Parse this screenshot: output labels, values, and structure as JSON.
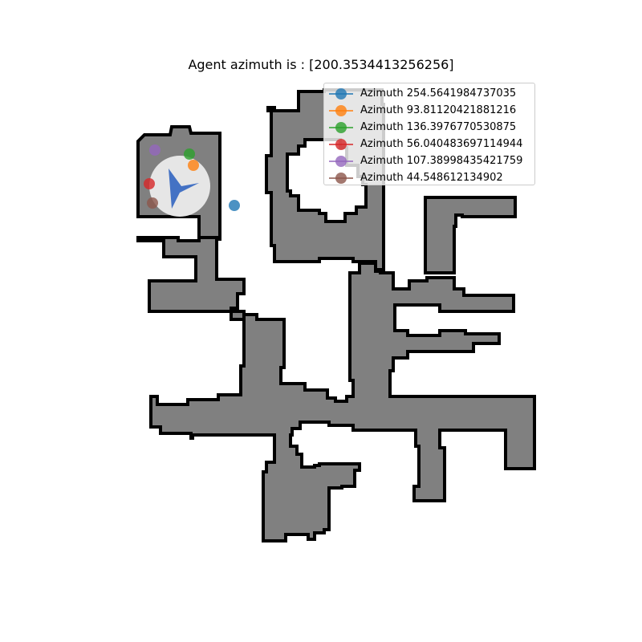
{
  "title": "Agent azimuth is : [200.3534413256256]",
  "colors": {
    "floor": "#808080",
    "wall": "#000000",
    "agent_view": "#e6e6e6",
    "agent_arrow": "#4472c4"
  },
  "legend": {
    "items": [
      {
        "label": "Azimuth 254.5641984737035",
        "color": "#1f77b4"
      },
      {
        "label": "Azimuth 93.81120421881216",
        "color": "#ff7f0e"
      },
      {
        "label": "Azimuth 136.3976770530875",
        "color": "#2ca02c"
      },
      {
        "label": "Azimuth 56.040483697114944",
        "color": "#d62728"
      },
      {
        "label": "Azimuth 107.38998435421759",
        "color": "#9467bd"
      },
      {
        "label": "Azimuth 44.548612134902",
        "color": "#8c564b"
      }
    ]
  }
}
